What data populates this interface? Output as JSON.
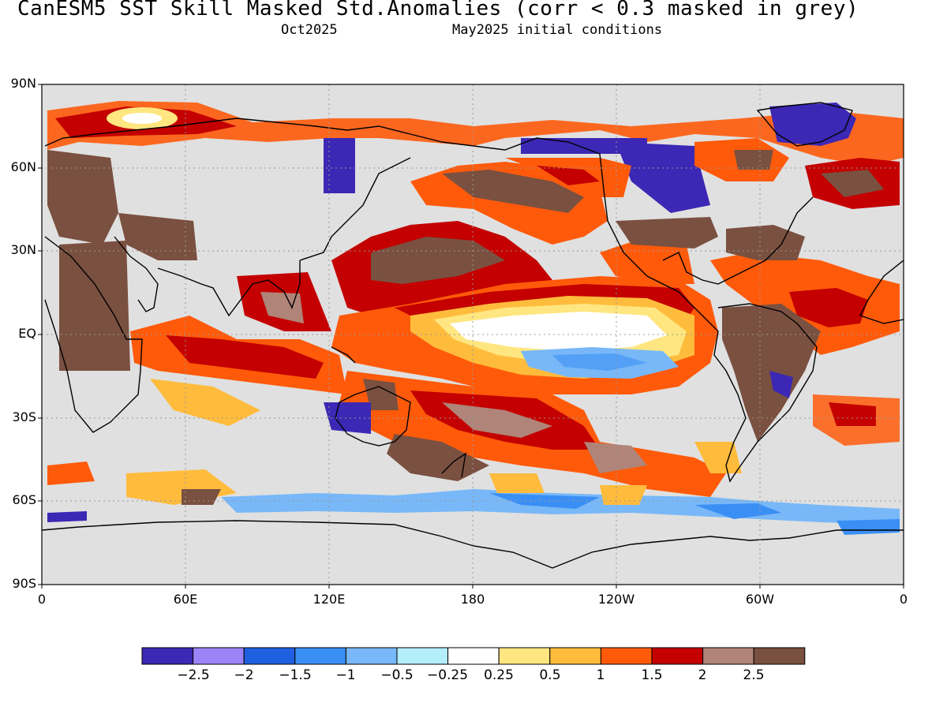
{
  "title": "CanESM5  SST Skill Masked Std.Anomalies (corr < 0.3 masked in grey)",
  "subtitle_left": "Oct2025",
  "subtitle_right": "May2025 initial conditions",
  "lat_labels": [
    "90N",
    "60N",
    "30N",
    "EQ",
    "30S",
    "60S",
    "90S"
  ],
  "lon_labels": [
    "0",
    "60E",
    "120E",
    "180",
    "120W",
    "60W",
    "0"
  ],
  "colorbar": {
    "colors": [
      "#3c28b4",
      "#9c83f7",
      "#1e60e0",
      "#3a8ff5",
      "#78b8f8",
      "#b4eefa",
      "#ffffff",
      "#ffe680",
      "#ffbc3c",
      "#ff5a0a",
      "#c40000",
      "#b08478",
      "#7a5040"
    ],
    "labels": [
      "−2.5",
      "−2",
      "−1.5",
      "−1",
      "−0.5",
      "−0.25",
      "0.25",
      "0.5",
      "1",
      "1.5",
      "2",
      "2.5"
    ]
  },
  "mask_color": "#e0e0e0"
}
